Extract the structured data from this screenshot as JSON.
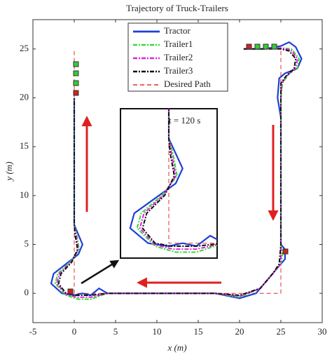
{
  "chart_data": {
    "type": "line",
    "title": "Trajectory of Truck-Trailers",
    "xlabel": "x (m)",
    "ylabel": "y (m)",
    "xlim": [
      -5,
      30
    ],
    "xticks": [
      -5,
      0,
      5,
      10,
      15,
      20,
      25,
      30
    ],
    "ylim": [
      -3,
      28
    ],
    "yticks": [
      0,
      5,
      10,
      15,
      20,
      25
    ],
    "grid": false,
    "legend": "upper center",
    "annotations": [
      "t = 120 s"
    ],
    "series": [
      {
        "name": "Tractor",
        "color": "#1f3fd6",
        "style": "solid",
        "x": [
          20.5,
          23,
          25,
          26,
          26.8,
          27.5,
          27,
          25.5,
          24.8,
          24.6,
          25,
          25,
          25,
          25.5,
          25.5,
          24.5,
          23.5,
          22,
          20,
          17,
          10,
          4,
          3,
          2,
          1,
          0,
          -1.5,
          -2.8,
          -2.5,
          -1,
          0.5,
          1,
          0.5,
          0,
          0,
          0
        ],
        "values": [
          25,
          25,
          25.3,
          25.7,
          25.2,
          24,
          23,
          22.5,
          22,
          20,
          18,
          10,
          5,
          4.5,
          3.5,
          2.5,
          1.5,
          0,
          -0.5,
          0,
          0,
          0,
          0.5,
          -0.2,
          0,
          -0.2,
          0,
          1,
          2,
          3,
          4,
          5,
          6,
          7,
          15,
          20
        ]
      },
      {
        "name": "Trailer1",
        "color": "#33dd33",
        "style": "dashdot",
        "x": [
          20.5,
          23,
          25,
          26.3,
          27.2,
          27,
          26,
          25.2,
          25,
          25,
          25,
          25.2,
          25,
          24,
          22.5,
          20,
          17,
          10,
          4,
          2,
          0.5,
          -1,
          -2.3,
          -2,
          -0.5,
          0.6,
          0.3,
          0,
          0,
          0
        ],
        "values": [
          25,
          25,
          25.1,
          25,
          24,
          23,
          22.5,
          21.5,
          20,
          10,
          5,
          4,
          3,
          2,
          0.5,
          -0.4,
          0,
          0,
          0,
          -0.6,
          -0.6,
          -0.2,
          1,
          2,
          3.2,
          4.5,
          6,
          7,
          15,
          20
        ]
      },
      {
        "name": "Trailer2",
        "color": "#dd22dd",
        "style": "dashdot",
        "x": [
          20.5,
          23,
          25,
          26.2,
          27,
          26.8,
          25.8,
          25.1,
          25,
          25,
          25,
          25,
          24,
          22.5,
          20,
          17,
          10,
          4,
          2,
          0.3,
          -1,
          -2.1,
          -1.8,
          -0.4,
          0.5,
          0.2,
          0,
          0,
          0
        ],
        "values": [
          25,
          25,
          25.1,
          24.9,
          24,
          23,
          22.3,
          21.5,
          20,
          10,
          5,
          3,
          2,
          0.5,
          -0.3,
          0,
          0,
          0,
          -0.4,
          -0.4,
          -0.1,
          1,
          2,
          3.2,
          4.5,
          6,
          7,
          15,
          20
        ]
      },
      {
        "name": "Trailer3",
        "color": "#111111",
        "style": "dashdot",
        "x": [
          20.5,
          23,
          25,
          26,
          26.8,
          26.6,
          25.6,
          25,
          25,
          25,
          25,
          24.8,
          24,
          22.5,
          20,
          17,
          10,
          4,
          2,
          0.2,
          -1,
          -1.9,
          -1.6,
          -0.3,
          0.4,
          0.1,
          0,
          0,
          0
        ],
        "values": [
          25,
          25,
          25,
          24.8,
          24,
          23,
          22.2,
          21.5,
          20,
          10,
          5,
          3,
          2,
          0.5,
          -0.2,
          0,
          0,
          0,
          -0.2,
          -0.2,
          0,
          1,
          2,
          3.2,
          4.5,
          6,
          7,
          15,
          20
        ]
      },
      {
        "name": "Desired Path",
        "color": "#e03030",
        "style": "dashed",
        "x": [
          21,
          25,
          25,
          0,
          0
        ],
        "values": [
          25,
          25,
          0,
          0,
          25
        ]
      }
    ]
  }
}
